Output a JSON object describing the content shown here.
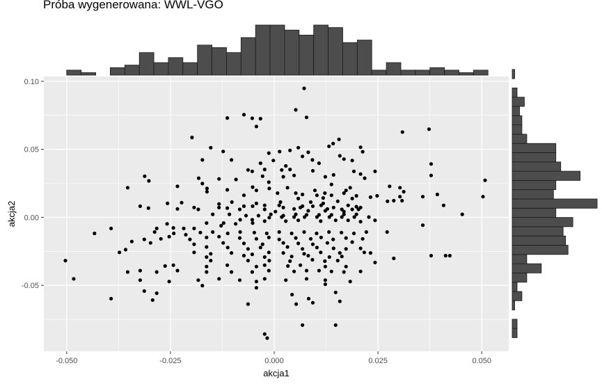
{
  "chart_data": {
    "type": "scatter",
    "title": "Próba wygenerowana: WWL-VGO",
    "xlabel": "akcja1",
    "ylabel": "akcja2",
    "xlim": [
      -0.0555,
      0.0565
    ],
    "ylim": [
      -0.0985,
      0.1035
    ],
    "x_ticks": [
      -0.05,
      -0.025,
      0.0,
      0.025,
      0.05
    ],
    "x_tick_labels": [
      "-0.050",
      "-0.025",
      "0.000",
      "0.025",
      "0.050"
    ],
    "y_ticks": [
      -0.05,
      0.0,
      0.05,
      0.1
    ],
    "y_tick_labels": [
      "-0.05",
      "0.00",
      "0.05",
      "0.10"
    ],
    "background": "#ebebeb",
    "grid": true,
    "point_color": "#000000",
    "bar_color": "#4d4d4d",
    "points": [
      [
        0.0072,
        0.0948
      ],
      [
        0.0052,
        0.079
      ],
      [
        -0.0073,
        0.0754
      ],
      [
        -0.0113,
        0.073
      ],
      [
        -0.0053,
        0.0728
      ],
      [
        -0.0033,
        0.0725
      ],
      [
        0.0078,
        0.0735
      ],
      [
        -0.0043,
        0.0668
      ],
      [
        0.0309,
        0.0627
      ],
      [
        0.0373,
        0.0648
      ],
      [
        -0.0198,
        0.0587
      ],
      [
        0.0156,
        0.0573
      ],
      [
        0.0142,
        0.0542
      ],
      [
        0.0132,
        0.0522
      ],
      [
        -0.0153,
        0.0512
      ],
      [
        0.0208,
        0.0515
      ],
      [
        0.0058,
        0.0512
      ],
      [
        0.0013,
        0.0483
      ],
      [
        -0.0123,
        0.0484
      ],
      [
        0.0038,
        0.0492
      ],
      [
        -0.0013,
        0.0472
      ],
      [
        0.0082,
        0.0478
      ],
      [
        0.0213,
        0.0482
      ],
      [
        0.0158,
        0.0452
      ],
      [
        0.0068,
        0.0448
      ],
      [
        -0.0173,
        0.0422
      ],
      [
        -0.0103,
        0.0422
      ],
      [
        -0.0002,
        0.0418
      ],
      [
        0.0168,
        0.0428
      ],
      [
        -0.0033,
        0.0398
      ],
      [
        0.0092,
        0.0422
      ],
      [
        0.0188,
        0.0418
      ],
      [
        0.0108,
        0.0398
      ],
      [
        0.0378,
        0.0392
      ],
      [
        0.0028,
        0.0378
      ],
      [
        -0.0063,
        0.0348
      ],
      [
        -0.0023,
        0.0352
      ],
      [
        -0.0053,
        0.0338
      ],
      [
        0.0018,
        0.0348
      ],
      [
        0.0038,
        0.0352
      ],
      [
        0.0093,
        0.0342
      ],
      [
        0.0192,
        0.0338
      ],
      [
        0.0243,
        0.0338
      ],
      [
        -0.0312,
        0.0302
      ],
      [
        -0.0182,
        0.0288
      ],
      [
        -0.0133,
        0.0282
      ],
      [
        -0.0028,
        0.0302
      ],
      [
        0.0048,
        0.0308
      ],
      [
        0.0123,
        0.0298
      ],
      [
        0.0208,
        0.0318
      ],
      [
        -0.0302,
        0.0268
      ],
      [
        -0.0173,
        0.0248
      ],
      [
        -0.0092,
        0.0278
      ],
      [
        -0.0013,
        0.0258
      ],
      [
        0.0022,
        0.0298
      ],
      [
        0.0143,
        0.0312
      ],
      [
        0.0218,
        0.0288
      ],
      [
        -0.0353,
        0.0218
      ],
      [
        -0.0233,
        0.0228
      ],
      [
        -0.0162,
        0.0212
      ],
      [
        -0.0052,
        0.0222
      ],
      [
        0.0138,
        0.0242
      ],
      [
        0.0278,
        0.0228
      ],
      [
        0.0378,
        0.0308
      ],
      [
        0.0508,
        0.0272
      ],
      [
        -0.0113,
        0.0202
      ],
      [
        -0.0043,
        0.0198
      ],
      [
        -0.0012,
        0.0212
      ],
      [
        0.0032,
        0.0218
      ],
      [
        0.0098,
        0.0198
      ],
      [
        0.0183,
        0.0218
      ],
      [
        0.0303,
        0.0218
      ],
      [
        0.0173,
        0.0198
      ],
      [
        0.0312,
        0.0188
      ],
      [
        0.0008,
        0.0178
      ],
      [
        0.0103,
        0.0162
      ],
      [
        0.0052,
        0.0178
      ],
      [
        0.0122,
        0.0178
      ],
      [
        0.0138,
        0.0162
      ],
      [
        0.0168,
        0.0178
      ],
      [
        0.0393,
        0.0168
      ],
      [
        0.0198,
        0.0158
      ],
      [
        -0.0162,
        0.0188
      ],
      [
        -0.0073,
        0.0162
      ],
      [
        0.0068,
        0.0168
      ],
      [
        0.0058,
        0.0138
      ],
      [
        0.0118,
        0.0142
      ],
      [
        0.0188,
        0.0138
      ],
      [
        0.0118,
        0.0102
      ],
      [
        0.0248,
        0.0158
      ],
      [
        0.0303,
        0.0152
      ],
      [
        0.0358,
        0.0152
      ],
      [
        0.0232,
        0.0148
      ],
      [
        0.0288,
        0.0122
      ],
      [
        0.0408,
        0.0088
      ],
      [
        0.0503,
        0.0152
      ],
      [
        -0.0223,
        0.0108
      ],
      [
        -0.0133,
        0.0098
      ],
      [
        -0.0102,
        0.0112
      ],
      [
        -0.0043,
        0.0102
      ],
      [
        0.0015,
        0.0112
      ],
      [
        0.0088,
        0.0112
      ],
      [
        0.0153,
        0.0118
      ],
      [
        0.0273,
        0.0118
      ],
      [
        0.0308,
        0.0122
      ],
      [
        -0.0257,
        0.0102
      ],
      [
        -0.0193,
        0.0072
      ],
      [
        -0.0133,
        0.0072
      ],
      [
        -0.0073,
        0.0082
      ],
      [
        -0.0052,
        0.0082
      ],
      [
        -0.0023,
        0.0088
      ],
      [
        0.0012,
        0.0088
      ],
      [
        0.0068,
        0.0082
      ],
      [
        0.0093,
        0.0082
      ],
      [
        0.0113,
        0.0088
      ],
      [
        0.0143,
        0.0072
      ],
      [
        0.0178,
        0.0088
      ],
      [
        0.0198,
        0.0078
      ],
      [
        0.0203,
        0.0058
      ],
      [
        0.0208,
        0.0072
      ],
      [
        0.0128,
        0.0062
      ],
      [
        0.0188,
        0.0058
      ],
      [
        -0.0323,
        0.0082
      ],
      [
        -0.0303,
        0.0068
      ],
      [
        -0.0233,
        0.0062
      ],
      [
        -0.0183,
        0.0058
      ],
      [
        -0.0113,
        0.0068
      ],
      [
        -0.0083,
        0.0058
      ],
      [
        -0.0023,
        0.0058
      ],
      [
        0.0022,
        0.0072
      ],
      [
        0.0048,
        0.0062
      ],
      [
        0.0063,
        0.0072
      ],
      [
        0.0003,
        0.0042
      ],
      [
        0.0082,
        0.0048
      ],
      [
        0.0123,
        0.0048
      ],
      [
        0.0163,
        0.0058
      ],
      [
        0.0168,
        0.0042
      ],
      [
        0.0453,
        0.0022
      ],
      [
        -0.0393,
        -0.0082
      ],
      [
        -0.0433,
        -0.0118
      ],
      [
        -0.0283,
        -0.0082
      ],
      [
        -0.0243,
        -0.0078
      ],
      [
        -0.0218,
        -0.0082
      ],
      [
        -0.0193,
        -0.0082
      ],
      [
        -0.0128,
        -0.0062
      ],
      [
        -0.0093,
        -0.0048
      ],
      [
        -0.0052,
        -0.0042
      ],
      [
        -0.0023,
        -0.0028
      ],
      [
        0.0028,
        -0.0028
      ],
      [
        0.0058,
        -0.0022
      ],
      [
        0.0112,
        -0.0028
      ],
      [
        0.0148,
        -0.0022
      ],
      [
        0.0178,
        -0.0022
      ],
      [
        0.0208,
        -0.0032
      ],
      [
        0.0243,
        -0.0022
      ],
      [
        -0.0258,
        -0.0048
      ],
      [
        -0.0163,
        -0.0042
      ],
      [
        -0.0122,
        -0.0042
      ],
      [
        -0.0082,
        -0.0018
      ],
      [
        -0.0053,
        -0.0018
      ],
      [
        -0.0012,
        -0.0002
      ],
      [
        0.0018,
        0.0002
      ],
      [
        0.0048,
        0.0002
      ],
      [
        0.0073,
        0.0002
      ],
      [
        0.0103,
        0.0002
      ],
      [
        0.0133,
        0.0002
      ],
      [
        0.0163,
        0.0002
      ],
      [
        0.0193,
        0.0002
      ],
      [
        0.0228,
        0.0002
      ],
      [
        -0.0148,
        0.0022
      ],
      [
        -0.0108,
        0.0022
      ],
      [
        -0.0068,
        0.0012
      ],
      [
        -0.0038,
        0.0012
      ],
      [
        -0.0008,
        0.0022
      ],
      [
        0.0022,
        0.0012
      ],
      [
        0.0052,
        0.0022
      ],
      [
        0.0078,
        0.0018
      ],
      [
        0.0108,
        0.0018
      ],
      [
        0.0138,
        0.0018
      ],
      [
        0.0168,
        0.0022
      ],
      [
        0.0198,
        0.0022
      ],
      [
        -0.0288,
        -0.0108
      ],
      [
        -0.0242,
        -0.0118
      ],
      [
        -0.0213,
        -0.0128
      ],
      [
        -0.0178,
        -0.0112
      ],
      [
        -0.0148,
        -0.0108
      ],
      [
        -0.0112,
        -0.0118
      ],
      [
        -0.0082,
        -0.0108
      ],
      [
        -0.0048,
        -0.0112
      ],
      [
        -0.0018,
        -0.0118
      ],
      [
        0.0012,
        -0.0108
      ],
      [
        0.0042,
        -0.0118
      ],
      [
        0.0072,
        -0.0108
      ],
      [
        0.0102,
        -0.0118
      ],
      [
        0.0132,
        -0.0108
      ],
      [
        0.0162,
        -0.0112
      ],
      [
        0.0192,
        -0.0118
      ],
      [
        0.0222,
        -0.0108
      ],
      [
        0.0272,
        -0.0108
      ],
      [
        0.0358,
        -0.0058
      ],
      [
        -0.0313,
        -0.0162
      ],
      [
        -0.0273,
        -0.0158
      ],
      [
        -0.0253,
        -0.0142
      ],
      [
        -0.0203,
        -0.0162
      ],
      [
        -0.0163,
        -0.0148
      ],
      [
        -0.0133,
        -0.0142
      ],
      [
        -0.0083,
        -0.0152
      ],
      [
        -0.0043,
        -0.0158
      ],
      [
        -0.0013,
        -0.0148
      ],
      [
        0.0012,
        -0.0162
      ],
      [
        0.0052,
        -0.0152
      ],
      [
        0.0088,
        -0.0158
      ],
      [
        0.0113,
        -0.0148
      ],
      [
        0.0142,
        -0.0162
      ],
      [
        0.0173,
        -0.0152
      ],
      [
        0.0213,
        -0.0158
      ],
      [
        -0.0343,
        -0.0178
      ],
      [
        -0.0298,
        -0.0188
      ],
      [
        -0.0193,
        -0.0198
      ],
      [
        -0.0123,
        -0.0188
      ],
      [
        -0.0073,
        -0.0192
      ],
      [
        -0.0028,
        -0.0198
      ],
      [
        0.0022,
        -0.0188
      ],
      [
        0.0058,
        -0.0192
      ],
      [
        0.0093,
        -0.0198
      ],
      [
        0.0128,
        -0.0188
      ],
      [
        0.0188,
        -0.0182
      ],
      [
        -0.0358,
        -0.0238
      ],
      [
        -0.0163,
        -0.0218
      ],
      [
        -0.0112,
        -0.0222
      ],
      [
        -0.0063,
        -0.0232
      ],
      [
        -0.0033,
        -0.0222
      ],
      [
        0.0032,
        -0.0218
      ],
      [
        0.0068,
        -0.0232
      ],
      [
        0.0103,
        -0.0222
      ],
      [
        0.0143,
        -0.0228
      ],
      [
        0.0173,
        -0.0232
      ],
      [
        0.0208,
        -0.0228
      ],
      [
        -0.0373,
        -0.0258
      ],
      [
        -0.0193,
        -0.0258
      ],
      [
        -0.0153,
        -0.0268
      ],
      [
        -0.0103,
        -0.0262
      ],
      [
        -0.0053,
        -0.0272
      ],
      [
        -0.0013,
        -0.0258
      ],
      [
        0.0022,
        -0.0262
      ],
      [
        0.0072,
        -0.0268
      ],
      [
        0.0112,
        -0.0258
      ],
      [
        0.0158,
        -0.0262
      ],
      [
        0.0217,
        -0.0258
      ],
      [
        0.0232,
        -0.0262
      ],
      [
        0.0378,
        -0.0282
      ],
      [
        0.0413,
        -0.0282
      ],
      [
        0.0423,
        -0.0282
      ],
      [
        -0.0163,
        -0.0292
      ],
      [
        -0.0073,
        -0.0282
      ],
      [
        -0.0023,
        -0.0292
      ],
      [
        0.0042,
        -0.0288
      ],
      [
        0.0082,
        -0.0282
      ],
      [
        0.0133,
        -0.0292
      ],
      [
        0.0163,
        -0.0288
      ],
      [
        0.0288,
        -0.0302
      ],
      [
        -0.0503,
        -0.0318
      ],
      [
        -0.0153,
        -0.0318
      ],
      [
        -0.0063,
        -0.0318
      ],
      [
        -0.0012,
        -0.0318
      ],
      [
        0.0038,
        -0.0322
      ],
      [
        0.0092,
        -0.0312
      ],
      [
        0.0122,
        -0.0322
      ],
      [
        0.0153,
        -0.0318
      ],
      [
        0.0243,
        -0.0332
      ],
      [
        -0.0263,
        -0.0358
      ],
      [
        -0.0243,
        -0.0352
      ],
      [
        -0.0163,
        -0.0362
      ],
      [
        -0.0113,
        -0.0352
      ],
      [
        -0.0043,
        -0.0362
      ],
      [
        -0.0023,
        -0.0352
      ],
      [
        0.0033,
        -0.0358
      ],
      [
        0.0063,
        -0.0352
      ],
      [
        0.0123,
        -0.0362
      ],
      [
        0.0173,
        -0.0362
      ],
      [
        -0.0353,
        -0.0402
      ],
      [
        -0.0323,
        -0.0392
      ],
      [
        -0.0283,
        -0.0402
      ],
      [
        -0.0233,
        -0.0392
      ],
      [
        -0.0163,
        -0.0402
      ],
      [
        -0.0103,
        -0.0402
      ],
      [
        -0.0053,
        -0.0402
      ],
      [
        -0.0013,
        -0.0392
      ],
      [
        0.0048,
        -0.0398
      ],
      [
        0.0078,
        -0.0392
      ],
      [
        0.0108,
        -0.0392
      ],
      [
        0.0138,
        -0.0398
      ],
      [
        0.0168,
        -0.0402
      ],
      [
        0.0208,
        -0.0398
      ],
      [
        -0.0483,
        -0.0452
      ],
      [
        -0.0323,
        -0.0462
      ],
      [
        -0.0253,
        -0.0472
      ],
      [
        -0.0183,
        -0.0462
      ],
      [
        -0.0133,
        -0.0452
      ],
      [
        -0.0083,
        -0.0462
      ],
      [
        -0.0043,
        -0.0472
      ],
      [
        -0.0023,
        -0.0452
      ],
      [
        0.0028,
        -0.0462
      ],
      [
        0.0078,
        -0.0452
      ],
      [
        0.0123,
        -0.0462
      ],
      [
        0.0183,
        -0.0472
      ],
      [
        -0.0173,
        -0.0502
      ],
      [
        -0.0043,
        -0.0518
      ],
      [
        0.0123,
        -0.0492
      ],
      [
        -0.0313,
        -0.0542
      ],
      [
        -0.0283,
        -0.0558
      ],
      [
        0.0043,
        -0.0568
      ],
      [
        0.0148,
        -0.0552
      ],
      [
        -0.0393,
        -0.0598
      ],
      [
        -0.0293,
        -0.0608
      ],
      [
        0.0083,
        -0.0598
      ],
      [
        -0.0063,
        -0.0638
      ],
      [
        0.0053,
        -0.0638
      ],
      [
        0.0093,
        -0.0628
      ],
      [
        0.0158,
        -0.0618
      ],
      [
        0.0068,
        -0.0792
      ],
      [
        0.0148,
        -0.0792
      ],
      [
        -0.0023,
        -0.0858
      ],
      [
        -0.0017,
        -0.0888
      ]
    ],
    "x_histogram": {
      "bin_start": -0.05,
      "bin_width": 0.0035,
      "counts": [
        2,
        1,
        0,
        3,
        4,
        9,
        5,
        7,
        5,
        12,
        11,
        9,
        15,
        20,
        20,
        18,
        16,
        20,
        19,
        13,
        14,
        2,
        5,
        2,
        2,
        3,
        2,
        1,
        2
      ]
    },
    "y_histogram": {
      "bin_start": -0.0885,
      "bin_width": 0.0068,
      "counts": [
        2,
        2,
        0,
        1,
        4,
        2,
        6,
        12,
        6,
        23,
        22,
        21,
        25,
        18,
        35,
        17,
        18,
        28,
        20,
        18,
        18,
        6,
        4,
        4,
        3,
        5,
        2,
        0,
        1
      ]
    }
  }
}
